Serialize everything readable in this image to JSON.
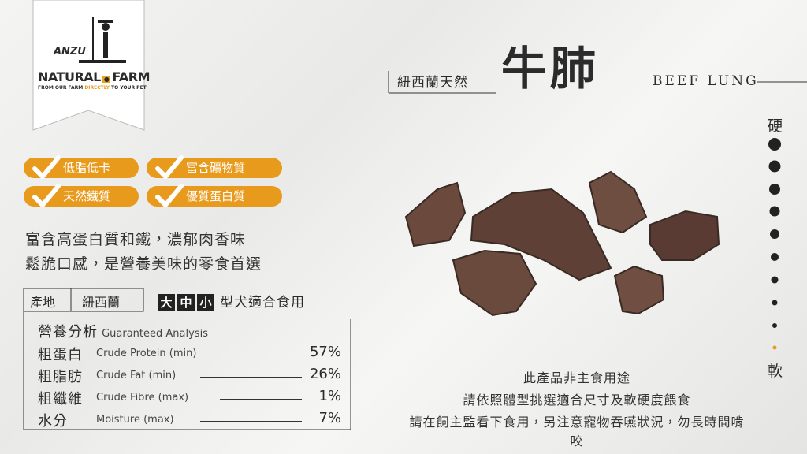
{
  "logo": {
    "brand": "NATURAL",
    "brand2": "FARM",
    "mark": "ANZU",
    "tagline1": "FROM OUR FARM",
    "tagline2": "DIRECTLY",
    "tagline3": "TO YOUR PET"
  },
  "header": {
    "origin_tag": "紐西蘭天然",
    "title": "牛肺",
    "subtitle": "BEEF LUNG"
  },
  "badges": [
    "低脂低卡",
    "富含礦物質",
    "天然鐵質",
    "優質蛋白質"
  ],
  "description": [
    "富含高蛋白質和鐵，濃郁肉香味",
    "鬆脆口感，是營養美味的零食首選"
  ],
  "origin": {
    "label": "產地",
    "value": "紐西蘭"
  },
  "sizes": {
    "chips": [
      "大",
      "中",
      "小"
    ],
    "text": "型犬適合食用"
  },
  "nutrition": {
    "title": "營養分析",
    "title_en": "Guaranteed  Analysis",
    "rows": [
      [
        "粗蛋白",
        "Crude Protein (min)",
        "57%"
      ],
      [
        "粗脂肪",
        "Crude Fat (min)",
        "26%"
      ],
      [
        "粗纖維",
        "Crude Fibre (max)",
        "1%"
      ],
      [
        "水分",
        "Moisture (max)",
        "7%"
      ]
    ]
  },
  "hardness": {
    "hard": "硬",
    "soft": "軟"
  },
  "notes": [
    "此產品非主食用途",
    "請依照體型挑選適合尺寸及軟硬度餵食",
    "請在飼主監看下食用，另注意寵物吞嚥狀況，勿長時間啃咬"
  ]
}
